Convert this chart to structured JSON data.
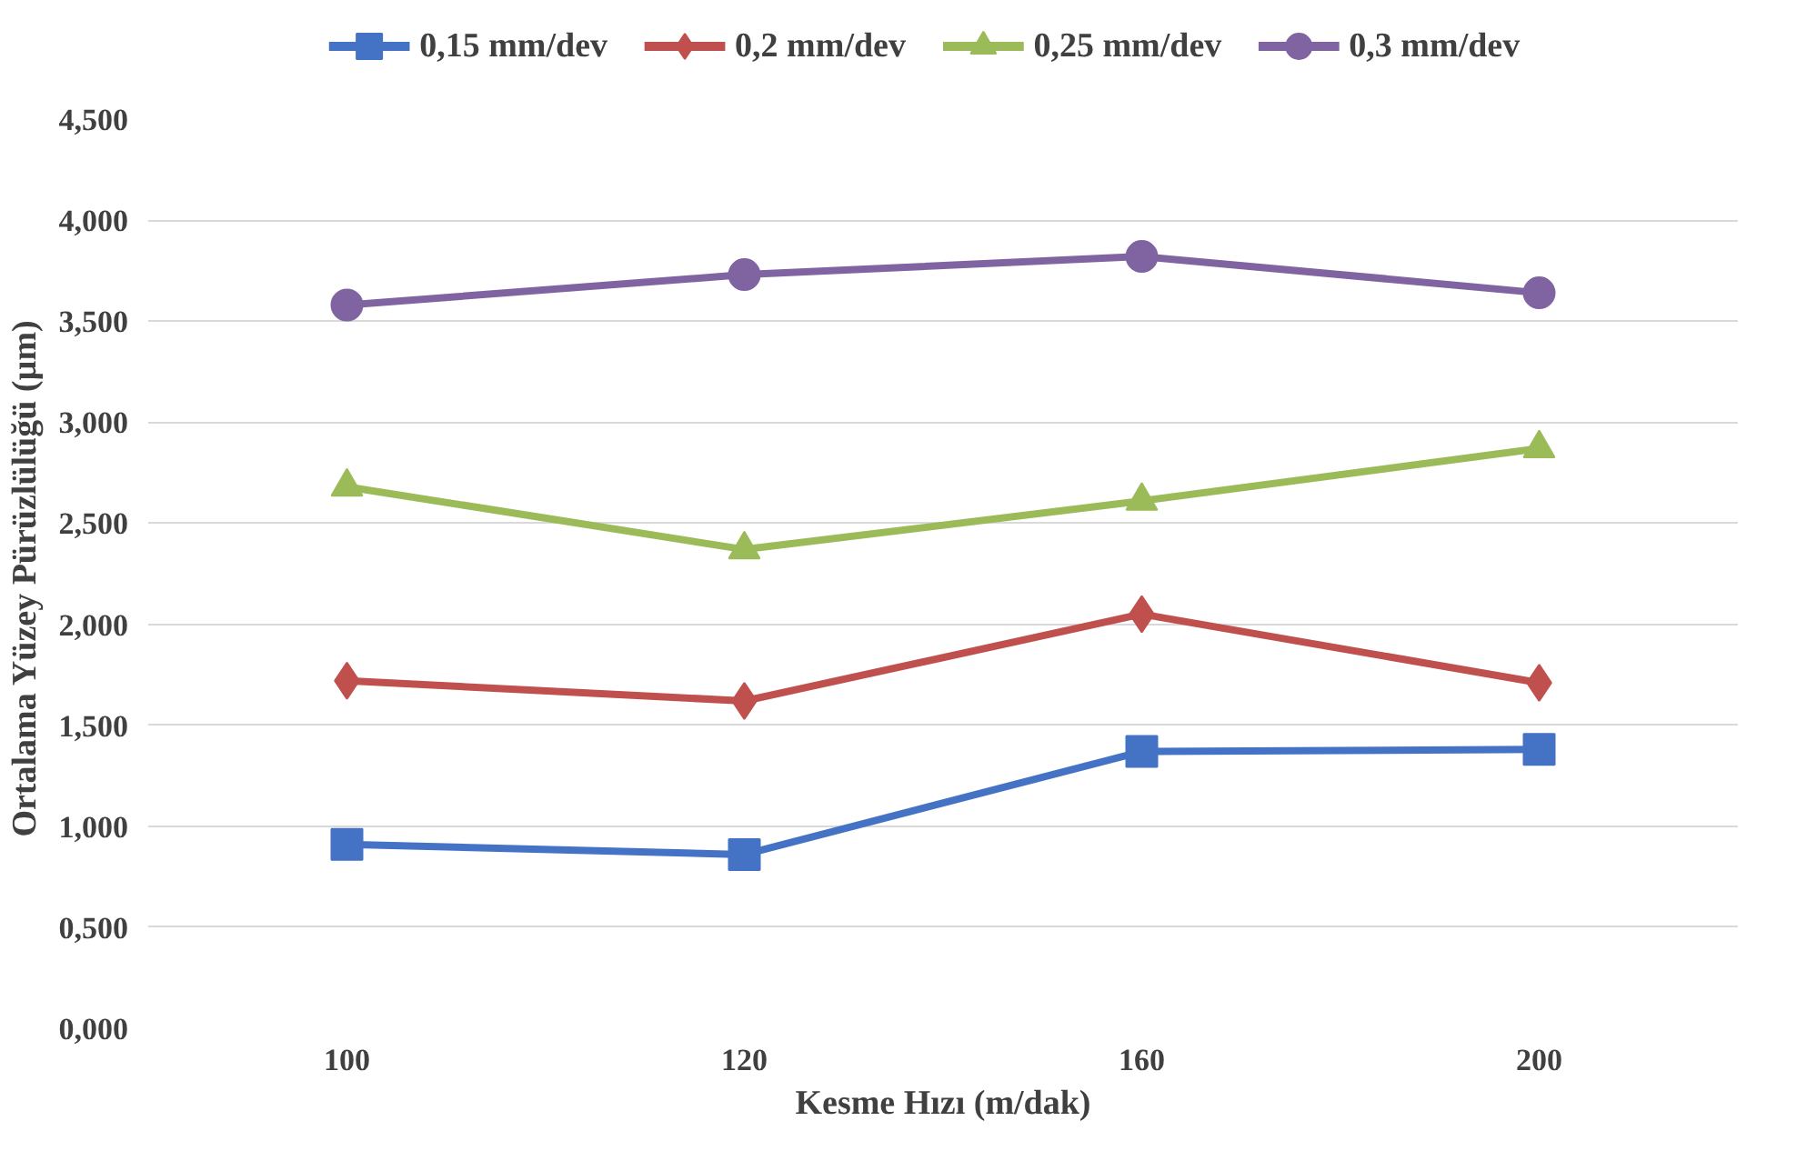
{
  "chart_data": {
    "type": "line",
    "xlabel": "Kesme Hızı (m/dak)",
    "ylabel": "Ortalama Yüzey  Pürüzlülüğü (µm)",
    "categories": [
      "100",
      "120",
      "160",
      "200"
    ],
    "ylim": [
      0,
      4.5
    ],
    "yticks": [
      {
        "value": 0,
        "label": "0,000"
      },
      {
        "value": 0.5,
        "label": "0,500"
      },
      {
        "value": 1,
        "label": "1,000"
      },
      {
        "value": 1.5,
        "label": "1,500"
      },
      {
        "value": 2,
        "label": "2,000"
      },
      {
        "value": 2.5,
        "label": "2,500"
      },
      {
        "value": 3,
        "label": "3,000"
      },
      {
        "value": 3.5,
        "label": "3,500"
      },
      {
        "value": 4,
        "label": "4,000"
      },
      {
        "value": 4.5,
        "label": "4,500"
      }
    ],
    "grid": "y",
    "legend": "top",
    "line_style": "solid",
    "series": [
      {
        "name": "0,15 mm/dev",
        "color": "#4472c4",
        "marker": "square",
        "values": [
          0.91,
          0.86,
          1.37,
          1.38
        ]
      },
      {
        "name": "0,2 mm/dev",
        "color": "#c0504d",
        "marker": "diamond",
        "values": [
          1.72,
          1.62,
          2.05,
          1.71
        ]
      },
      {
        "name": "0,25 mm/dev",
        "color": "#9bbb59",
        "marker": "triangle",
        "values": [
          2.68,
          2.37,
          2.61,
          2.87
        ]
      },
      {
        "name": "0,3 mm/dev",
        "color": "#8064a2",
        "marker": "circle",
        "values": [
          3.58,
          3.73,
          3.82,
          3.64
        ]
      }
    ]
  }
}
